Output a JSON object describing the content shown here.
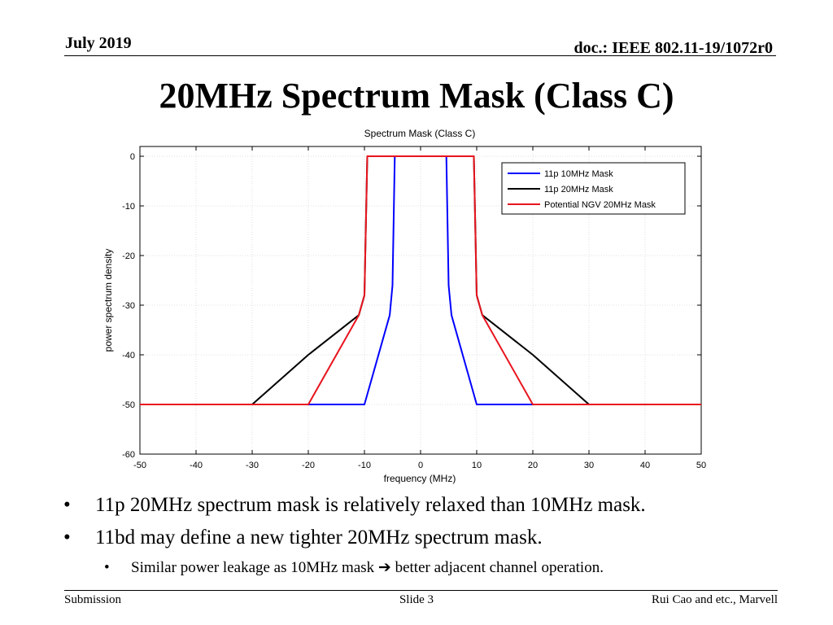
{
  "header": {
    "date": "July 2019",
    "doc": "doc.: IEEE 802.11-19/1072r0"
  },
  "slide_title": "20MHz Spectrum Mask (Class C)",
  "chart_data": {
    "type": "line",
    "title": "Spectrum Mask (Class C)",
    "xlabel": "frequency (MHz)",
    "ylabel": "power spectrum density",
    "xlim": [
      -50,
      50
    ],
    "ylim": [
      -60,
      0
    ],
    "xticks": [
      -50,
      -40,
      -30,
      -20,
      -10,
      0,
      10,
      20,
      30,
      40,
      50
    ],
    "yticks": [
      0,
      -10,
      -20,
      -30,
      -40,
      -50,
      -60
    ],
    "grid": true,
    "legend_position": "top-right",
    "series": [
      {
        "name": "11p 10MHz Mask",
        "color": "#0000ff",
        "x": [
          -50,
          -10,
          -5.5,
          -5,
          -4.6,
          4.6,
          5,
          5.5,
          10,
          50
        ],
        "y": [
          -50,
          -50,
          -32,
          -26,
          0,
          0,
          -26,
          -32,
          -50,
          -50
        ]
      },
      {
        "name": "11p 20MHz Mask",
        "color": "#000000",
        "x": [
          -50,
          -30,
          -20,
          -11,
          -10,
          -9.5,
          9.5,
          10,
          11,
          20,
          30,
          50
        ],
        "y": [
          -50,
          -50,
          -40,
          -32,
          -28,
          0,
          0,
          -28,
          -32,
          -40,
          -50,
          -50
        ]
      },
      {
        "name": "Potential NGV 20MHz Mask",
        "color": "#e8141e",
        "x": [
          -50,
          -20,
          -11,
          -10,
          -9.5,
          9.5,
          10,
          11,
          20,
          50
        ],
        "y": [
          -50,
          -50,
          -32,
          -28,
          0,
          0,
          -28,
          -32,
          -50,
          -50
        ]
      }
    ]
  },
  "bullets": [
    {
      "text": "11p 20MHz spectrum mask is relatively relaxed than 10MHz mask.",
      "level": 1
    },
    {
      "text": "11bd may define a new tighter 20MHz spectrum mask.",
      "level": 1
    },
    {
      "text": "Similar power leakage as 10MHz mask ➔ better adjacent channel operation.",
      "level": 2
    }
  ],
  "footer": {
    "left": "Submission",
    "center": "Slide 3",
    "right": "Rui Cao and etc., Marvell"
  }
}
